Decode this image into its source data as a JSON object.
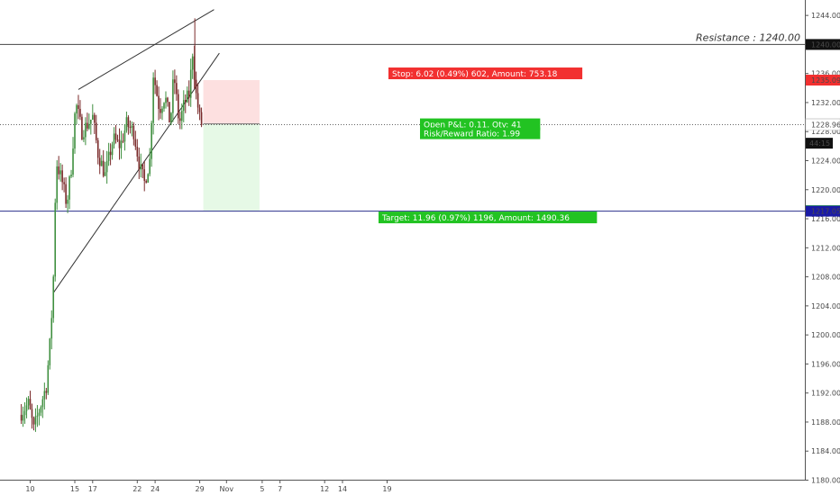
{
  "chart_data": {
    "type": "candlestick",
    "colors": {
      "up": "#3f8f3f",
      "down": "#7a2a2a",
      "stop_zone": "#fde0e0",
      "target_zone": "#e6f9e6",
      "stop_label": "#f23030",
      "target_label": "#22c322",
      "resistance_line": "#444444",
      "support_line": "#2a2f8c",
      "support_badge": "#1a1aa6",
      "price_badge": "#111111",
      "trendline": "#333333"
    },
    "yaxis": {
      "range": [
        1180,
        1246
      ],
      "ticks": [
        "1244.00",
        "1240.00",
        "1236.00",
        "1232.00",
        "1228.00",
        "1224.00",
        "1220.00",
        "1216.00",
        "1212.00",
        "1208.00",
        "1204.00",
        "1200.00",
        "1196.00",
        "1192.00",
        "1188.00",
        "1184.00",
        "1180.00"
      ]
    },
    "xaxis": {
      "range_days": [
        9,
        39
      ],
      "ticks": [
        {
          "label": "10",
          "day": 10
        },
        {
          "label": "15",
          "day": 15
        },
        {
          "label": "17",
          "day": 17
        },
        {
          "label": "22",
          "day": 22
        },
        {
          "label": "24",
          "day": 24
        },
        {
          "label": "29",
          "day": 29
        },
        {
          "label": "Nov",
          "day": 32
        },
        {
          "label": "5",
          "day": 36
        },
        {
          "label": "7",
          "day": 38
        },
        {
          "label": "12",
          "day": 43
        },
        {
          "label": "14",
          "day": 45
        },
        {
          "label": "19",
          "day": 50
        }
      ]
    },
    "resistance": {
      "value": 1240.0,
      "label": "Resistance : 1240.00"
    },
    "support": {
      "value": 1217.05
    },
    "trendlines": [
      {
        "from": {
          "day": 15.4,
          "price": 1233.8
        },
        "to": {
          "day": 30.6,
          "price": 1244.8
        }
      },
      {
        "from": {
          "day": 12.6,
          "price": 1205.8
        },
        "to": {
          "day": 31.2,
          "price": 1238.8
        }
      }
    ],
    "position": {
      "entry": 1229.07,
      "stop": 1235.09,
      "target": 1217.11,
      "start_day": 29.4,
      "end_day": 35.7,
      "stop_label": "Stop: 6.02 (0.49%) 602, Amount: 753.18",
      "target_label": "Target: 11.96 (0.97%) 1196, Amount: 1490.36",
      "open_label": "Open P&L: 0.11, Qty: 41",
      "rr_label": "Risk/Reward Ratio: 1.99"
    },
    "price_badges": [
      {
        "text": "1240.00",
        "value": 1240.0,
        "bg": "#111111",
        "fg": "#ffffff"
      },
      {
        "text": "1235.09",
        "value": 1235.09,
        "bg": "#f23030",
        "fg": "#ffffff"
      },
      {
        "text": "1229.07",
        "value": 1229.07,
        "bg": "#ffffff",
        "fg": "#111111"
      },
      {
        "text": "1228.96",
        "value": 1228.96,
        "bg": "#ffffff",
        "fg": "#111111"
      },
      {
        "text": "1217.11",
        "value": 1217.11,
        "bg": "#22c322",
        "fg": "#ffffff"
      },
      {
        "text": "1217.05",
        "value": 1217.05,
        "bg": "#1a1aa6",
        "fg": "#ffffff"
      }
    ],
    "countdown": {
      "text": "44:15",
      "value": 1226.4
    },
    "anchors": [
      {
        "day": 9.0,
        "price": 1189
      },
      {
        "day": 10.0,
        "price": 1190.5
      },
      {
        "day": 10.6,
        "price": 1187
      },
      {
        "day": 11.3,
        "price": 1190
      },
      {
        "day": 12.0,
        "price": 1193
      },
      {
        "day": 12.5,
        "price": 1200
      },
      {
        "day": 12.8,
        "price": 1208
      },
      {
        "day": 13.1,
        "price": 1224
      },
      {
        "day": 13.8,
        "price": 1221
      },
      {
        "day": 14.3,
        "price": 1218
      },
      {
        "day": 14.8,
        "price": 1223
      },
      {
        "day": 15.3,
        "price": 1232
      },
      {
        "day": 16.0,
        "price": 1228
      },
      {
        "day": 17.2,
        "price": 1230
      },
      {
        "day": 17.8,
        "price": 1225
      },
      {
        "day": 18.6,
        "price": 1222
      },
      {
        "day": 19.5,
        "price": 1227
      },
      {
        "day": 20.3,
        "price": 1226
      },
      {
        "day": 21.0,
        "price": 1229
      },
      {
        "day": 21.8,
        "price": 1228
      },
      {
        "day": 22.5,
        "price": 1223
      },
      {
        "day": 23.0,
        "price": 1221
      },
      {
        "day": 23.6,
        "price": 1224
      },
      {
        "day": 24.0,
        "price": 1236
      },
      {
        "day": 24.7,
        "price": 1231
      },
      {
        "day": 25.3,
        "price": 1233
      },
      {
        "day": 25.9,
        "price": 1229
      },
      {
        "day": 26.3,
        "price": 1236
      },
      {
        "day": 26.9,
        "price": 1229
      },
      {
        "day": 27.5,
        "price": 1232
      },
      {
        "day": 28.0,
        "price": 1233
      },
      {
        "day": 28.4,
        "price": 1239
      },
      {
        "day": 28.8,
        "price": 1233
      },
      {
        "day": 29.3,
        "price": 1229.07
      }
    ]
  }
}
